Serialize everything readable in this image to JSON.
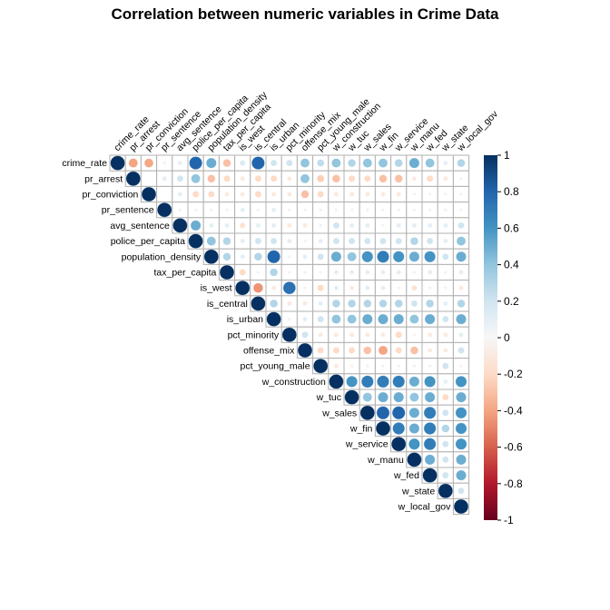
{
  "chart_data": {
    "type": "heatmap",
    "title": "Correlation between numeric variables in Crime Data",
    "variables": [
      "crime_rate",
      "pr_arrest",
      "pr_conviction",
      "pr_sentence",
      "avg_sentence",
      "police_per_capita",
      "population_density",
      "tax_per_capita",
      "is_west",
      "is_central",
      "is_urban",
      "pct_minority",
      "offense_mix",
      "pct_young_male",
      "w_construction",
      "w_tuc",
      "w_sales",
      "w_fin",
      "w_service",
      "w_manu",
      "w_fed",
      "w_state",
      "w_local_gov"
    ],
    "matrix_shape": "upper",
    "marker": "circle",
    "legend_ticks": [
      "1",
      "0.8",
      "0.6",
      "0.4",
      "0.2",
      "0",
      "-0.2",
      "-0.4",
      "-0.6",
      "-0.8",
      "-1"
    ],
    "legend_range": [
      -1,
      1
    ],
    "legend_position": "right",
    "colors": {
      "negative": "#67001f",
      "neutral": "#f7f7f7",
      "positive": "#053061",
      "grid": "#b0b0b0"
    },
    "rows": [
      [
        1,
        -0.4,
        -0.39,
        0.05,
        0.1,
        0.8,
        0.5,
        -0.3,
        0.15,
        0.8,
        0.2,
        0.2,
        0.4,
        0.25,
        0.4,
        0.3,
        0.4,
        0.4,
        0.3,
        0.5,
        0.4,
        0.1,
        0.3
      ],
      [
        1,
        0.0,
        0.1,
        0.2,
        0.4,
        -0.3,
        -0.2,
        -0.1,
        -0.2,
        -0.2,
        -0.1,
        0.4,
        -0.25,
        -0.3,
        -0.2,
        -0.2,
        -0.3,
        -0.3,
        -0.1,
        -0.2,
        -0.1,
        0.05
      ],
      [
        1,
        0.0,
        0.1,
        -0.2,
        -0.2,
        -0.1,
        -0.1,
        -0.2,
        -0.1,
        -0.1,
        -0.3,
        -0.2,
        -0.1,
        -0.1,
        -0.1,
        -0.1,
        -0.1,
        -0.05,
        0.05,
        -0.05,
        0.05
      ],
      [
        1,
        0.05,
        0.05,
        0.05,
        0.05,
        0.1,
        0.05,
        0.1,
        0.05,
        0.05,
        0.05,
        0.05,
        0.05,
        0.05,
        0.05,
        0.05,
        0.05,
        0.05,
        0.05,
        0.05
      ],
      [
        1,
        0.5,
        0.1,
        0.1,
        -0.15,
        0.1,
        0.1,
        -0.1,
        -0.1,
        0.05,
        0.2,
        0.1,
        0.1,
        0.05,
        0.1,
        0.1,
        0.1,
        0.1,
        0.2
      ],
      [
        1,
        0.4,
        0.3,
        0.1,
        0.2,
        0.2,
        0.1,
        0.05,
        0.1,
        0.2,
        0.2,
        0.2,
        0.2,
        0.2,
        0.3,
        0.2,
        0.1,
        0.4
      ],
      [
        1,
        0.3,
        0.1,
        0.3,
        0.8,
        0.05,
        0.1,
        0.2,
        0.5,
        0.4,
        0.6,
        0.7,
        0.6,
        0.5,
        0.6,
        0.2,
        0.5
      ],
      [
        1,
        -0.2,
        0.05,
        0.3,
        0.05,
        0.05,
        0.05,
        0.1,
        0.1,
        0.1,
        0.1,
        0.1,
        0.05,
        0.1,
        0.05,
        0.1
      ],
      [
        1,
        -0.45,
        -0.1,
        0.75,
        0.05,
        -0.2,
        0.1,
        -0.1,
        0.1,
        0.1,
        0.05,
        -0.15,
        0.05,
        0.05,
        -0.1
      ],
      [
        1,
        0.3,
        -0.1,
        -0.1,
        0.1,
        0.3,
        0.3,
        0.3,
        0.3,
        0.3,
        0.2,
        0.3,
        0.1,
        0.3
      ],
      [
        1,
        0.05,
        0.1,
        0.2,
        0.4,
        0.4,
        0.5,
        0.5,
        0.5,
        0.4,
        0.5,
        0.2,
        0.5
      ],
      [
        1,
        0.2,
        -0.1,
        -0.1,
        -0.1,
        -0.1,
        -0.1,
        -0.2,
        0.05,
        -0.1,
        -0.1,
        0.1
      ],
      [
        1,
        -0.2,
        -0.2,
        -0.2,
        -0.3,
        -0.4,
        -0.2,
        -0.3,
        -0.1,
        -0.1,
        0.2
      ],
      [
        1,
        -0.1,
        -0.05,
        -0.05,
        -0.05,
        -0.05,
        -0.05,
        -0.05,
        0.2,
        -0.05
      ],
      [
        1,
        0.6,
        0.7,
        0.7,
        0.7,
        0.5,
        0.6,
        0.1,
        0.6
      ],
      [
        1,
        0.4,
        0.5,
        0.5,
        0.4,
        0.5,
        -0.2,
        0.5
      ],
      [
        1,
        0.8,
        0.8,
        0.5,
        0.7,
        0.2,
        0.6
      ],
      [
        1,
        0.7,
        0.5,
        0.7,
        0.3,
        0.6
      ],
      [
        1,
        0.6,
        0.7,
        0.2,
        0.6
      ],
      [
        1,
        0.5,
        0.2,
        0.5
      ],
      [
        1,
        0.2,
        0.5
      ],
      [
        1,
        0.2
      ],
      [
        1
      ]
    ]
  }
}
